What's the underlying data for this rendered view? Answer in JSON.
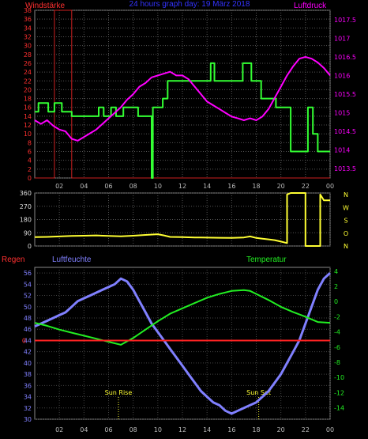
{
  "chart_data": [
    {
      "type": "line",
      "title": "24 hours graph day: 19 März 2018",
      "left_label": "Windstärke",
      "right_label": "Luftdruck",
      "x_ticks": [
        "02",
        "04",
        "06",
        "08",
        "10",
        "12",
        "14",
        "16",
        "18",
        "20",
        "22",
        "00"
      ],
      "left_ylim": [
        0,
        38
      ],
      "left_ticks": [
        "0",
        "2",
        "4",
        "6",
        "8",
        "10",
        "12",
        "14",
        "16",
        "18",
        "20",
        "22",
        "24",
        "26",
        "28",
        "30",
        "32",
        "34",
        "36",
        "38"
      ],
      "right_ylim": [
        1013.25,
        1017.75
      ],
      "right_ticks": [
        "1013.5",
        "1014",
        "1014.5",
        "1015",
        "1015.5",
        "1016",
        "1016.5",
        "1017",
        "1017.5"
      ],
      "grid": true,
      "colors": {
        "wind_gust": "#cc2020",
        "wind_mean": "#33ff33",
        "pressure": "#ff00ff",
        "left_axis": "#ff3030",
        "right_axis": "#ff00ff"
      },
      "series": [
        {
          "key": "wind_gust",
          "x": [
            0,
            1.6,
            1.6,
            3,
            3,
            24
          ],
          "y": [
            0,
            0,
            38,
            38,
            0,
            0
          ]
        },
        {
          "key": "wind_mean",
          "x": [
            0,
            0.3,
            0.3,
            1.1,
            1.1,
            1.6,
            1.6,
            2.2,
            2.2,
            3.0,
            3.0,
            5.2,
            5.2,
            5.6,
            5.6,
            6.2,
            6.2,
            6.6,
            6.6,
            7.2,
            7.2,
            8.4,
            8.4,
            9.5,
            9.5,
            9.6,
            9.6,
            10.4,
            10.4,
            10.8,
            10.8,
            11.1,
            11.1,
            11.3,
            11.3,
            13.7,
            13.7,
            14.3,
            14.3,
            14.6,
            14.6,
            14.9,
            14.9,
            16.9,
            16.9,
            17.6,
            17.6,
            18.4,
            18.4,
            19.6,
            19.6,
            20.8,
            20.8,
            21.1,
            21.1,
            21.8,
            21.8,
            22.2,
            22.2,
            22.6,
            22.6,
            23.0,
            23.0,
            24.0
          ],
          "y": [
            15,
            15,
            17,
            17,
            15,
            15,
            17,
            17,
            15,
            15,
            14,
            14,
            16,
            16,
            14,
            14,
            16,
            16,
            14,
            14,
            16,
            16,
            14,
            14,
            0,
            0,
            16,
            16,
            18,
            18,
            22,
            22,
            22,
            22,
            22,
            22,
            22,
            22,
            26,
            26,
            22,
            22,
            22,
            22,
            26,
            26,
            22,
            22,
            18,
            18,
            16,
            16,
            6,
            6,
            6,
            6,
            6,
            6,
            16,
            16,
            10,
            10,
            6,
            6
          ]
        },
        {
          "key": "pressure",
          "x": [
            0,
            0.5,
            1,
            1.5,
            2,
            2.5,
            3,
            3.5,
            4,
            4.5,
            5,
            5.5,
            6,
            6.5,
            7,
            7.5,
            8,
            8.5,
            9,
            9.5,
            10,
            10.5,
            11,
            11.5,
            12,
            12.5,
            13,
            13.5,
            14,
            14.5,
            15,
            15.5,
            16,
            16.5,
            17,
            17.5,
            18,
            18.5,
            19,
            19.5,
            20,
            20.5,
            21,
            21.5,
            22,
            22.5,
            23,
            23.5,
            24
          ],
          "y": [
            1014.8,
            1014.7,
            1014.8,
            1014.65,
            1014.55,
            1014.5,
            1014.3,
            1014.25,
            1014.35,
            1014.45,
            1014.55,
            1014.7,
            1014.85,
            1015.0,
            1015.15,
            1015.35,
            1015.5,
            1015.7,
            1015.8,
            1015.95,
            1016.0,
            1016.05,
            1016.1,
            1016.0,
            1016.0,
            1015.9,
            1015.7,
            1015.5,
            1015.3,
            1015.2,
            1015.1,
            1015.0,
            1014.9,
            1014.85,
            1014.8,
            1014.85,
            1014.8,
            1014.9,
            1015.1,
            1015.4,
            1015.7,
            1016.0,
            1016.25,
            1016.45,
            1016.5,
            1016.45,
            1016.35,
            1016.2,
            1016.0
          ]
        }
      ]
    },
    {
      "type": "line",
      "right_label_letters": [
        "N",
        "W",
        "S",
        "O",
        "N"
      ],
      "x_ticks": [
        "02",
        "04",
        "06",
        "08",
        "10",
        "12",
        "14",
        "16",
        "18",
        "20",
        "22",
        "00"
      ],
      "ylim": [
        0,
        360
      ],
      "y_ticks": [
        "0",
        "90",
        "180",
        "270",
        "360"
      ],
      "grid": true,
      "colors": {
        "direction": "#ffff33"
      },
      "series": [
        {
          "key": "direction",
          "x": [
            0,
            1,
            2,
            3,
            4,
            5,
            6,
            7,
            8,
            9,
            10,
            10.5,
            11,
            12,
            13,
            14,
            15,
            16,
            17,
            17.5,
            18,
            18.5,
            19,
            19.5,
            20,
            20.5,
            20.5,
            20.8,
            20.8,
            22,
            22,
            22.4,
            22.4,
            23.2,
            23.2,
            23.5,
            24
          ],
          "y": [
            60,
            62,
            65,
            68,
            70,
            72,
            68,
            66,
            70,
            75,
            80,
            72,
            62,
            60,
            58,
            57,
            56,
            55,
            58,
            65,
            55,
            50,
            45,
            40,
            30,
            20,
            350,
            360,
            360,
            360,
            0,
            0,
            0,
            0,
            350,
            310,
            310
          ]
        }
      ]
    },
    {
      "type": "line",
      "left_label": "Regen",
      "left_label2": "Luftfeuchte",
      "right_label": "Temperatur",
      "x_ticks": [
        "02",
        "04",
        "06",
        "08",
        "10",
        "12",
        "14",
        "16",
        "18",
        "20",
        "22",
        "00"
      ],
      "left_ylim": [
        30,
        57
      ],
      "left_ticks": [
        "30",
        "32",
        "34",
        "36",
        "38",
        "40",
        "42",
        "44",
        "46",
        "48",
        "50",
        "52",
        "54",
        "56"
      ],
      "rain_zero": "0",
      "right_ylim": [
        -15.5,
        4.5
      ],
      "right_ticks": [
        "4",
        "2",
        "0",
        "-2",
        "-4",
        "-6",
        "-8",
        "-10",
        "-12",
        "-14"
      ],
      "annotations": [
        {
          "text": "Sun Rise",
          "x": 6.8
        },
        {
          "text": "Sun Set",
          "x": 18.2
        }
      ],
      "colors": {
        "humidity": "#8080ff",
        "temperature": "#22ee22",
        "rain": "#ff2222"
      },
      "series": [
        {
          "key": "humidity",
          "x": [
            0,
            0.5,
            1,
            1.5,
            2,
            2.5,
            3,
            3.5,
            4,
            4.5,
            5,
            5.5,
            6,
            6.5,
            7,
            7.5,
            8,
            8.5,
            9,
            9.5,
            10,
            10.5,
            11,
            11.5,
            12,
            12.5,
            13,
            13.5,
            14,
            14.5,
            15,
            15.5,
            16,
            16.5,
            17,
            17.5,
            18,
            18.5,
            19,
            19.5,
            20,
            20.5,
            21,
            21.5,
            22,
            22.5,
            23,
            23.5,
            24
          ],
          "y": [
            46.5,
            47,
            47.5,
            48,
            48.5,
            49,
            50,
            51,
            51.5,
            52,
            52.5,
            53,
            53.5,
            54,
            55,
            54.5,
            53,
            51,
            49,
            47,
            45.5,
            44,
            42.5,
            41,
            39.5,
            38,
            36.5,
            35,
            34,
            33,
            32.5,
            31.5,
            31,
            31.5,
            32,
            32.5,
            33,
            34,
            35,
            36.5,
            38,
            40,
            42,
            44,
            47,
            50,
            53,
            55,
            56
          ]
        },
        {
          "key": "temperature",
          "x": [
            0,
            1,
            2,
            3,
            4,
            5,
            6,
            7,
            8,
            9,
            10,
            11,
            12,
            13,
            14,
            15,
            16,
            17,
            17.5,
            18,
            19,
            20,
            21,
            22,
            23,
            24
          ],
          "y": [
            -2.8,
            -3.2,
            -3.7,
            -4.1,
            -4.5,
            -4.9,
            -5.3,
            -5.7,
            -4.8,
            -3.7,
            -2.6,
            -1.6,
            -0.9,
            -0.2,
            0.5,
            1.0,
            1.4,
            1.5,
            1.4,
            1.0,
            0.2,
            -0.7,
            -1.4,
            -2.0,
            -2.7,
            -2.8
          ]
        },
        {
          "key": "rain",
          "x": [
            0,
            24
          ],
          "y": [
            0,
            0
          ]
        }
      ]
    }
  ]
}
